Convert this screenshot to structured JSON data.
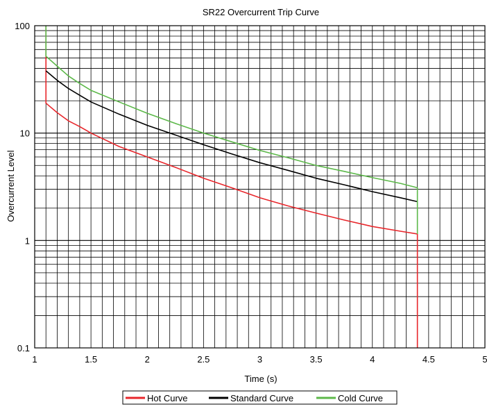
{
  "chart_data": {
    "type": "line",
    "title": "SR22 Overcurrent Trip Curve",
    "xlabel": "Time (s)",
    "ylabel": "Overcurrent Level",
    "xlim": [
      1,
      5
    ],
    "ylim": [
      0.1,
      100
    ],
    "yscale": "log",
    "x_ticks": [
      1,
      1.5,
      2,
      2.5,
      3,
      3.5,
      4,
      4.5,
      5
    ],
    "x_tick_labels": [
      "1",
      "1.5",
      "2",
      "2.5",
      "3",
      "3.5",
      "4",
      "4.5",
      "5"
    ],
    "y_ticks": [
      0.1,
      1,
      10,
      100
    ],
    "y_tick_labels": [
      "0.1",
      "1",
      "10",
      "100"
    ],
    "grid": true,
    "legend_position": "bottom",
    "series": [
      {
        "name": "Hot Curve",
        "color": "#e8262b",
        "points": [
          [
            1.1,
            100
          ],
          [
            1.1,
            19
          ],
          [
            1.2,
            15.5
          ],
          [
            1.3,
            13
          ],
          [
            1.4,
            11.5
          ],
          [
            1.5,
            10
          ],
          [
            1.75,
            7.5
          ],
          [
            2,
            6
          ],
          [
            2.25,
            4.8
          ],
          [
            2.5,
            3.8
          ],
          [
            2.75,
            3.1
          ],
          [
            3,
            2.5
          ],
          [
            3.25,
            2.1
          ],
          [
            3.5,
            1.8
          ],
          [
            3.75,
            1.55
          ],
          [
            4,
            1.35
          ],
          [
            4.25,
            1.22
          ],
          [
            4.4,
            1.15
          ],
          [
            4.4,
            0.1
          ]
        ]
      },
      {
        "name": "Standard Curve",
        "color": "#000000",
        "points": [
          [
            1.1,
            38
          ],
          [
            1.2,
            31
          ],
          [
            1.3,
            26
          ],
          [
            1.4,
            22.5
          ],
          [
            1.5,
            19.5
          ],
          [
            1.75,
            15
          ],
          [
            2,
            11.8
          ],
          [
            2.25,
            9.6
          ],
          [
            2.5,
            7.8
          ],
          [
            2.75,
            6.4
          ],
          [
            3,
            5.3
          ],
          [
            3.25,
            4.5
          ],
          [
            3.5,
            3.8
          ],
          [
            3.75,
            3.3
          ],
          [
            4,
            2.85
          ],
          [
            4.25,
            2.5
          ],
          [
            4.4,
            2.3
          ]
        ]
      },
      {
        "name": "Cold Curve",
        "color": "#5cb849",
        "points": [
          [
            1.1,
            100
          ],
          [
            1.1,
            52
          ],
          [
            1.2,
            42
          ],
          [
            1.3,
            34
          ],
          [
            1.4,
            29
          ],
          [
            1.5,
            25
          ],
          [
            1.75,
            19.5
          ],
          [
            2,
            15.3
          ],
          [
            2.25,
            12.3
          ],
          [
            2.5,
            10
          ],
          [
            2.75,
            8.3
          ],
          [
            3,
            6.9
          ],
          [
            3.25,
            5.9
          ],
          [
            3.5,
            5
          ],
          [
            3.75,
            4.4
          ],
          [
            4,
            3.85
          ],
          [
            4.25,
            3.4
          ],
          [
            4.4,
            3.1
          ],
          [
            4.4,
            1.15
          ]
        ]
      }
    ]
  }
}
